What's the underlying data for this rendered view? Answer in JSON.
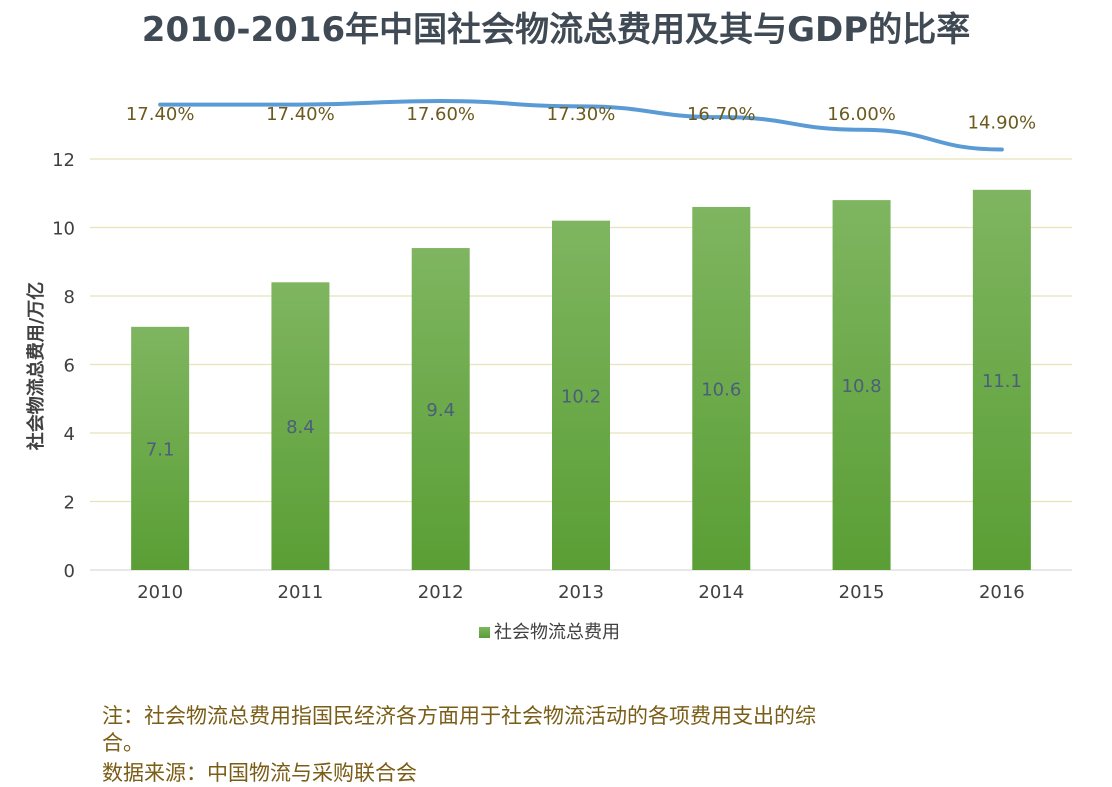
{
  "chart_data": {
    "type": "bar",
    "title": "2010-2016年中国社会物流总费用及其与GDP的比率",
    "categories": [
      "2010",
      "2011",
      "2012",
      "2013",
      "2014",
      "2015",
      "2016"
    ],
    "series": [
      {
        "name": "社会物流总费用",
        "type": "bar",
        "values": [
          7.1,
          8.4,
          9.4,
          10.2,
          10.6,
          10.8,
          11.1
        ]
      },
      {
        "type": "line",
        "values": [
          17.4,
          17.4,
          17.6,
          17.3,
          16.7,
          16.0,
          14.9
        ],
        "labels": [
          "17.40%",
          "17.40%",
          "17.60%",
          "17.30%",
          "16.70%",
          "16.00%",
          "14.90%"
        ]
      }
    ],
    "xlabel": "",
    "ylabel": "社会物流总费用/万亿",
    "ylim": [
      0,
      12
    ],
    "yticks": [
      "0",
      "2",
      "4",
      "6",
      "8",
      "10",
      "12"
    ],
    "grid": true,
    "legend": "bottom",
    "colors": {
      "bar_top": "#7fb560",
      "bar_bottom": "#5a9e35",
      "line": "#5b9bd5",
      "grid": "#e8e4b8",
      "line_label": "#6b5a1e",
      "bar_label": "#4a5f7a"
    }
  },
  "notes": {
    "line1": "注：社会物流总费用指国民经济各方面用于社会物流活动的各项费用支出的综",
    "line2": "合。",
    "line3": "数据来源：中国物流与采购联合会"
  }
}
